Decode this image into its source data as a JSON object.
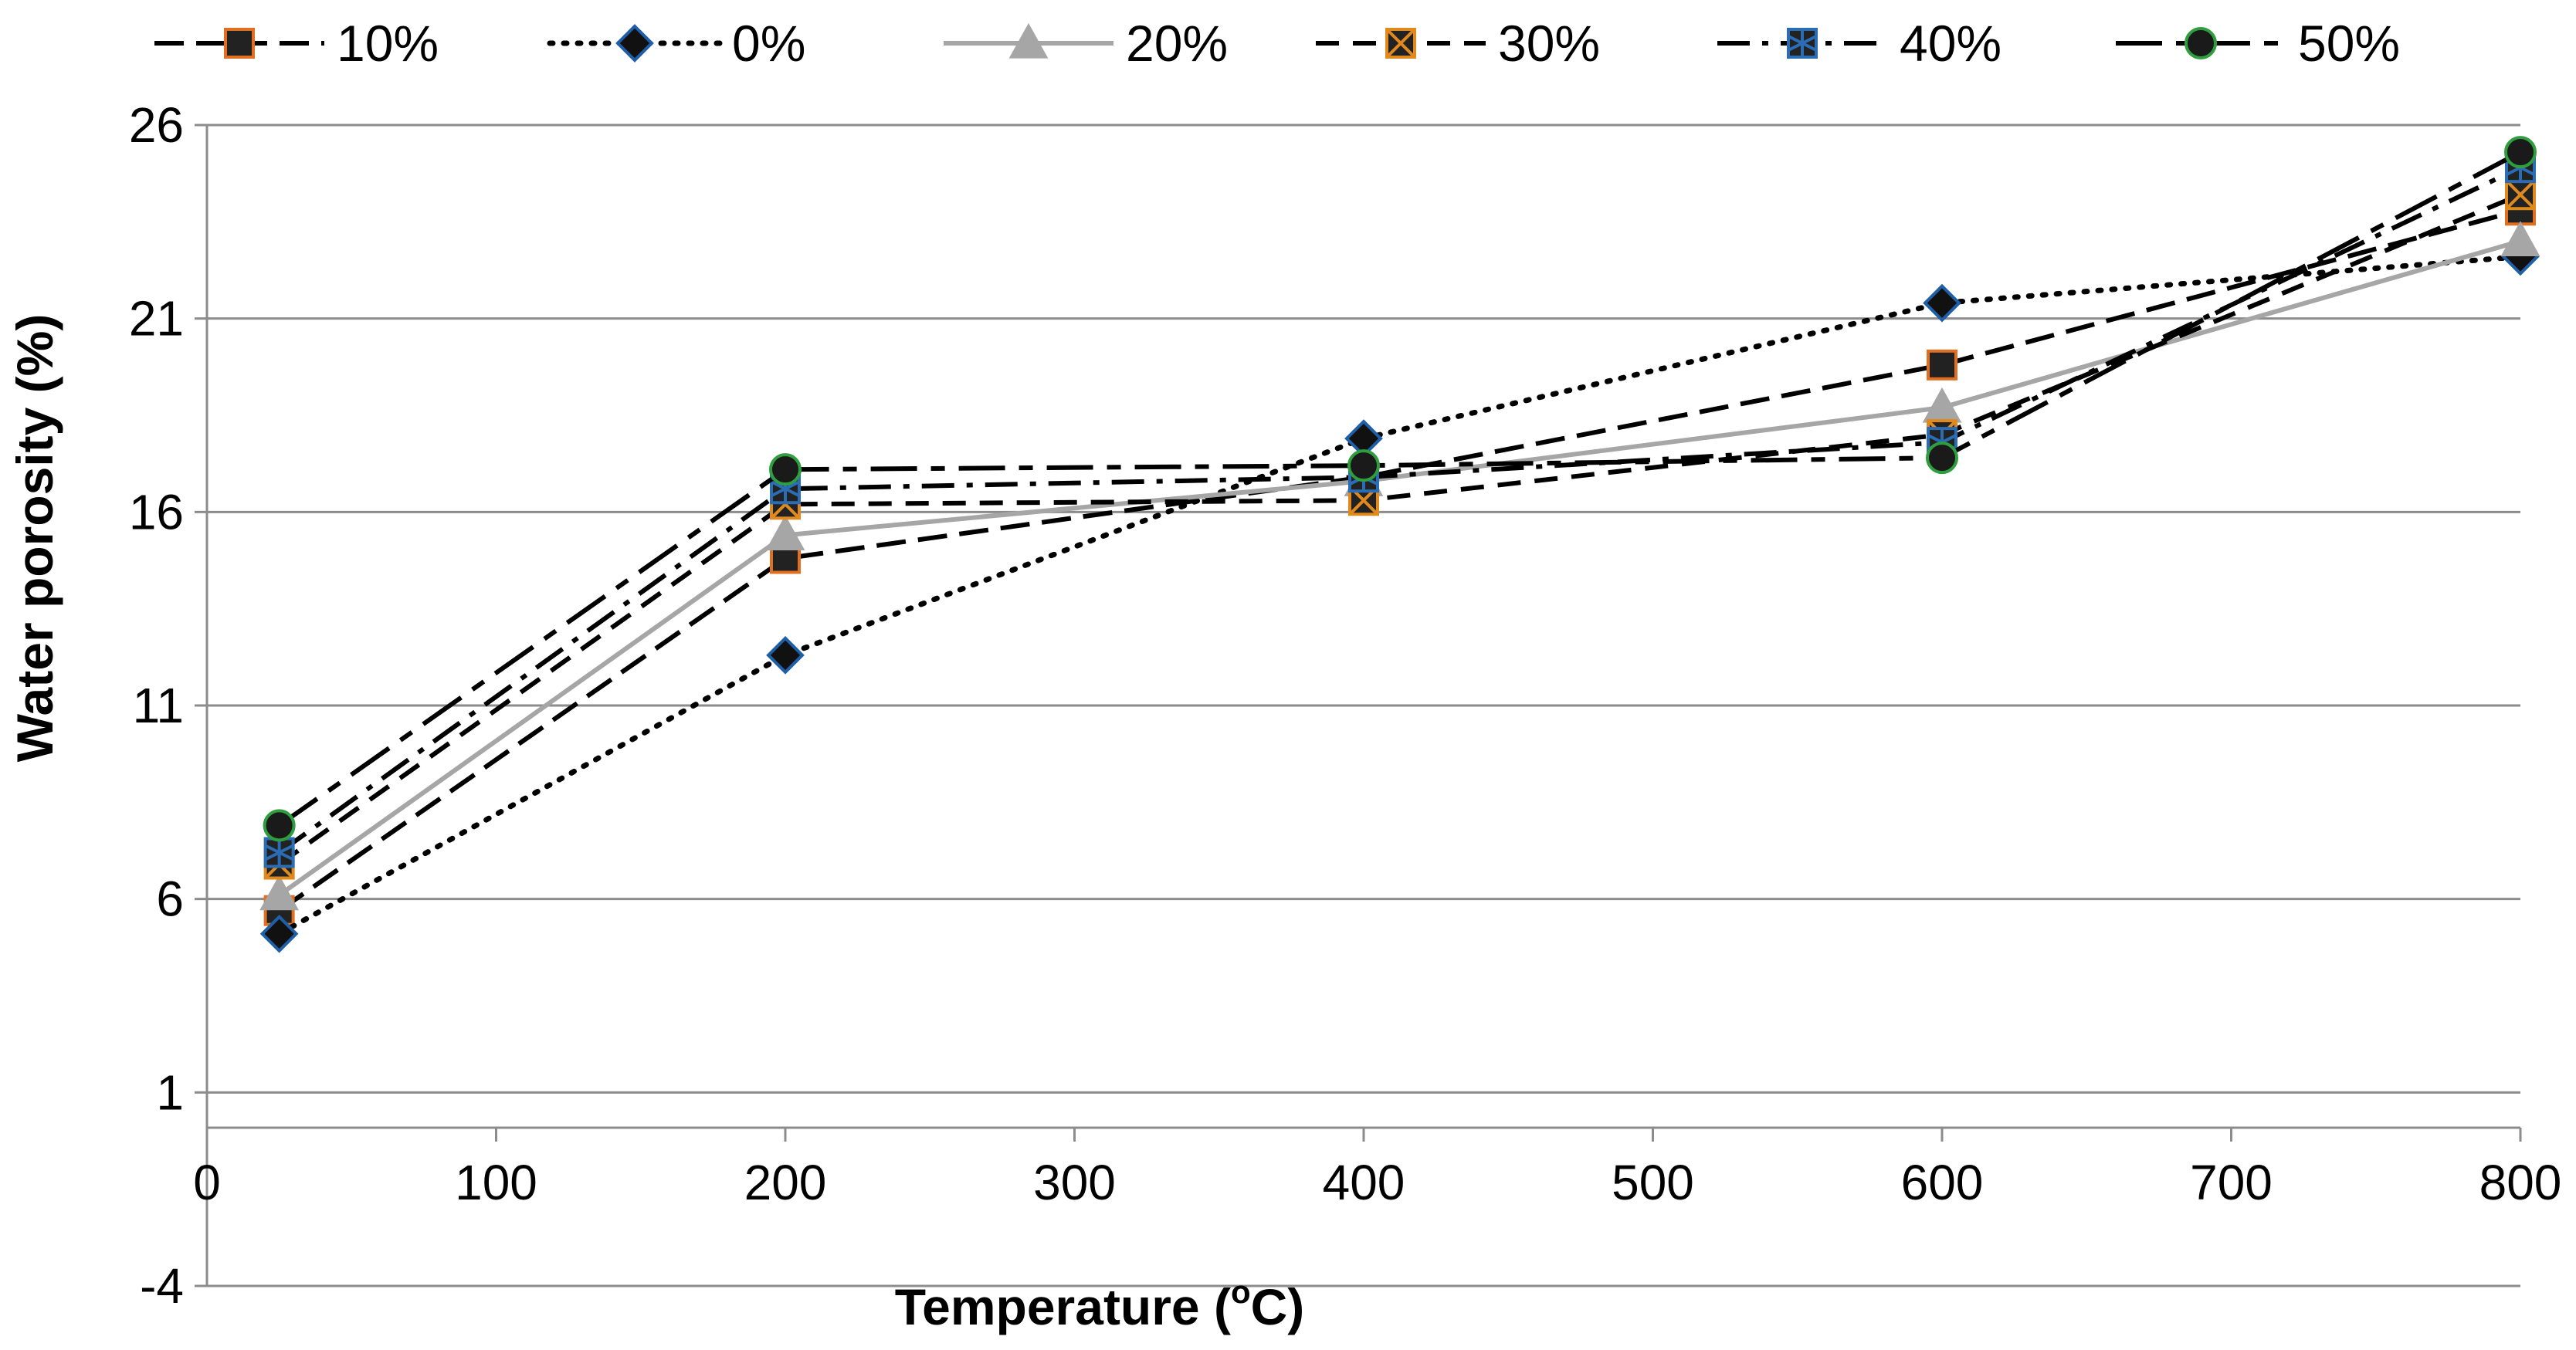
{
  "chart_data": {
    "type": "line",
    "title": "",
    "xlabel": "Temperature (",
    "xlabel_sup": "o",
    "xlabel_unit": "C)",
    "ylabel": "Water porosity (%)",
    "xlim": [
      0,
      800
    ],
    "ylim": [
      -4,
      26
    ],
    "xticks": [
      0,
      100,
      200,
      300,
      400,
      500,
      600,
      700,
      800
    ],
    "yticks": [
      -4,
      1,
      6,
      11,
      16,
      21,
      26
    ],
    "xtick_labels": [
      "0",
      "100",
      "200",
      "300",
      "400",
      "500",
      "600",
      "700",
      "800"
    ],
    "ytick_labels": [
      "-4",
      "1",
      "6",
      "11",
      "16",
      "21",
      "26"
    ],
    "grid": "horizontal",
    "legend_position": "top",
    "x": [
      25,
      200,
      400,
      600,
      800
    ],
    "series": [
      {
        "name": "10%",
        "values": [
          5.7,
          14.8,
          16.9,
          19.8,
          23.8
        ],
        "color": "#000000",
        "dash": "long-dash",
        "marker": "square",
        "marker_fill": "#222222",
        "marker_edge": "#e07020"
      },
      {
        "name": "0%",
        "values": [
          5.1,
          12.3,
          17.9,
          21.4,
          22.6
        ],
        "color": "#000000",
        "dash": "dotted",
        "marker": "diamond",
        "marker_fill": "#111111",
        "marker_edge": "#1f5fa8"
      },
      {
        "name": "20%",
        "values": [
          6.1,
          15.4,
          16.8,
          18.7,
          23.0
        ],
        "color": "#a6a6a6",
        "dash": "solid",
        "marker": "triangle",
        "marker_fill": "#a6a6a6",
        "marker_edge": "#a6a6a6"
      },
      {
        "name": "30%",
        "values": [
          6.9,
          16.2,
          16.3,
          18.0,
          24.2
        ],
        "color": "#000000",
        "dash": "dashed",
        "marker": "x-square",
        "marker_fill": "#222222",
        "marker_edge": "#e08a1e"
      },
      {
        "name": "40%",
        "values": [
          7.2,
          16.6,
          16.9,
          17.8,
          24.9
        ],
        "color": "#000000",
        "dash": "dash-dot",
        "marker": "star-square",
        "marker_fill": "#222222",
        "marker_edge": "#2a6db5"
      },
      {
        "name": "50%",
        "values": [
          7.9,
          17.1,
          17.2,
          17.4,
          25.3
        ],
        "color": "#000000",
        "dash": "long-dash-dot",
        "marker": "circle",
        "marker_fill": "#1a1a1a",
        "marker_edge": "#2e9e3e"
      }
    ]
  }
}
